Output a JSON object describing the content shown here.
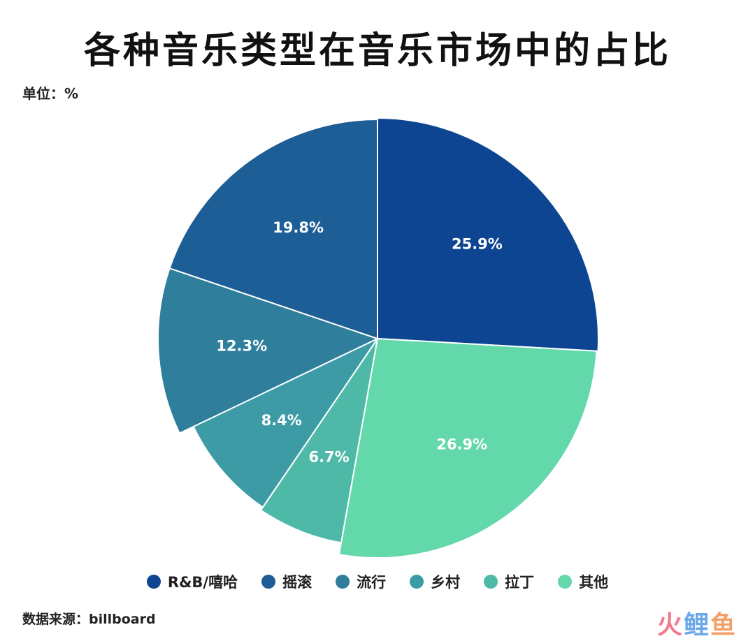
{
  "title": "各种音乐类型在音乐市场中的占比",
  "unit_label": "单位：%",
  "source_label": "数据来源：billboard",
  "watermark": [
    "火",
    "鲤",
    "鱼"
  ],
  "colors": {
    "R&B/嘻哈": "#0e4592",
    "摇滚": "#1d5e96",
    "流行": "#2e7e9c",
    "乡村": "#3d9ba5",
    "拉丁": "#4fb9a8",
    "其他": "#62d8ab"
  },
  "chart_data": {
    "type": "pie",
    "categories": [
      "R&B/嘻哈",
      "其他",
      "拉丁",
      "乡村",
      "流行",
      "摇滚"
    ],
    "values": [
      25.9,
      26.9,
      6.7,
      8.4,
      12.3,
      19.8
    ],
    "value_labels": [
      "25.9%",
      "26.9%",
      "6.7%",
      "8.4%",
      "12.3%",
      "19.8%"
    ],
    "legend": [
      "R&B/嘻哈",
      "摇滚",
      "流行",
      "乡村",
      "拉丁",
      "其他"
    ],
    "legend_position": "bottom"
  }
}
